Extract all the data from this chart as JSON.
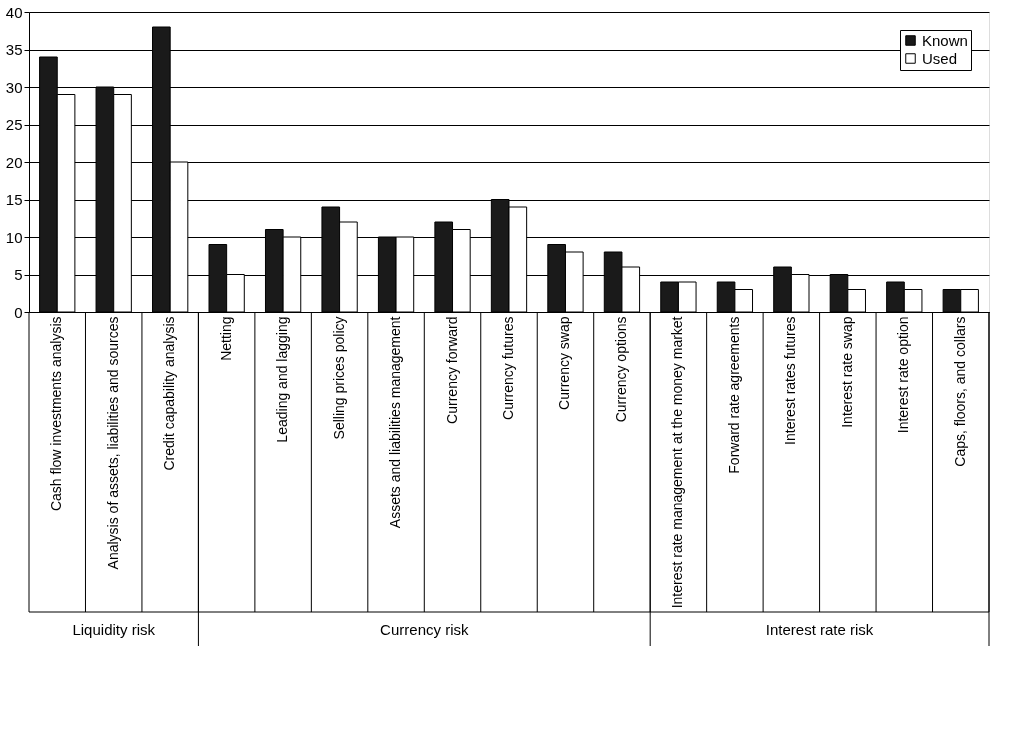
{
  "chart_data": {
    "type": "bar",
    "categories": [
      "Cash flow investments analysis",
      "Analysis of assets, liabilities and sources",
      "Credit capability analysis",
      "Netting",
      "Leading and lagging",
      "Selling prices policy",
      "Assets and liabilities management",
      "Currency forward",
      "Currency futures",
      "Currency swap",
      "Currency options",
      "Interest rate management at the money market",
      "Forward rate agreements",
      "Interest rates futures",
      "Interest rate swap",
      "Interest rate option",
      "Caps, floors, and collars"
    ],
    "series": [
      {
        "name": "Known",
        "color": "#1a1a1a",
        "values": [
          34,
          30,
          38,
          9,
          11,
          14,
          10,
          12,
          15,
          9,
          8,
          4,
          4,
          6,
          5,
          4,
          3
        ]
      },
      {
        "name": "Used",
        "color": "#ffffff",
        "values": [
          29,
          29,
          20,
          5,
          10,
          12,
          10,
          11,
          14,
          8,
          6,
          4,
          3,
          5,
          3,
          3,
          3
        ]
      }
    ],
    "ylim": [
      0,
      40
    ],
    "yticks": [
      0,
      5,
      10,
      15,
      20,
      25,
      30,
      35,
      40
    ],
    "grid": "y",
    "legend": "top right",
    "annotations": [
      "Liquidity risk",
      "Currency risk",
      "Interest rate risk"
    ]
  }
}
